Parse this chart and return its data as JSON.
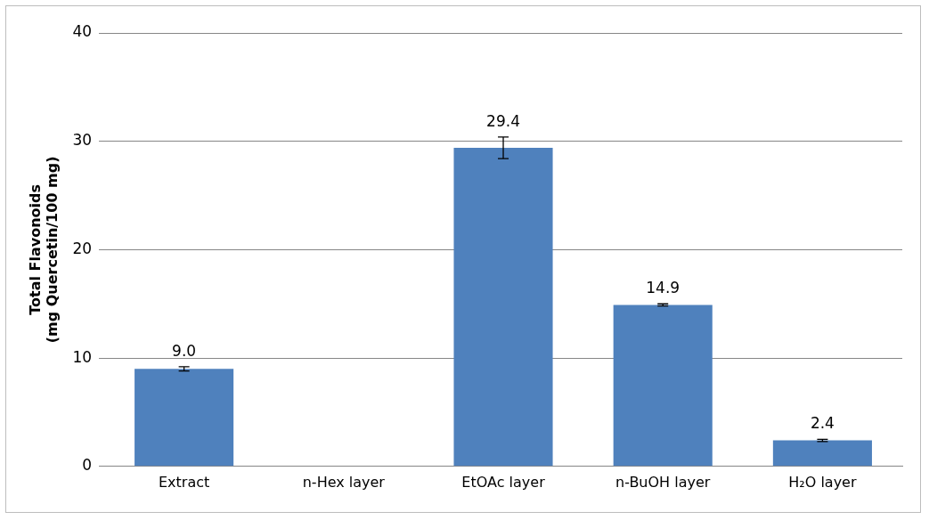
{
  "chart_data": {
    "type": "bar",
    "ylabel": "Total Flavonoids\n(mg Quercetin/100 mg)",
    "categories": [
      "Extract",
      "n-Hex layer",
      "EtOAc layer",
      "n-BuOH layer",
      "H₂O layer"
    ],
    "values": [
      9.0,
      null,
      29.4,
      14.9,
      2.4
    ],
    "errors": [
      0.2,
      null,
      1.0,
      0.1,
      0.1
    ],
    "value_labels": [
      "9.0",
      null,
      "29.4",
      "14.9",
      "2.4"
    ],
    "color": "#4f81bd",
    "ylim": [
      0,
      40
    ],
    "yticks": [
      0,
      10,
      20,
      30,
      40
    ],
    "grid": "y"
  }
}
